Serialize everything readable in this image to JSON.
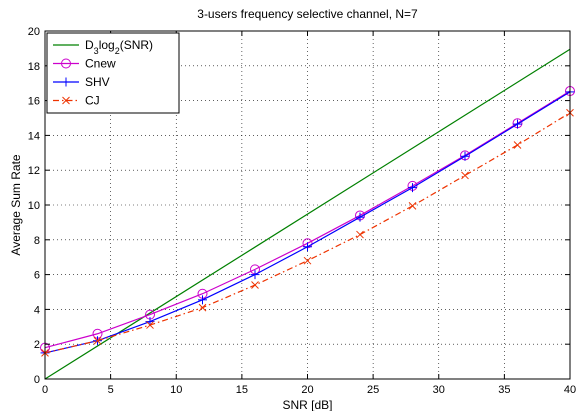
{
  "chart_data": {
    "type": "line",
    "title": "3-users frequency selective channel, N=7",
    "xlabel": "SNR [dB]",
    "ylabel": "Average Sum Rate",
    "xlim": [
      0,
      40
    ],
    "ylim": [
      0,
      20
    ],
    "xticks": [
      0,
      5,
      10,
      15,
      20,
      25,
      30,
      35,
      40
    ],
    "yticks": [
      0,
      2,
      4,
      6,
      8,
      10,
      12,
      14,
      16,
      18,
      20
    ],
    "grid": true,
    "legend_position": "top-left",
    "series": [
      {
        "name": "D3log2(SNR)",
        "legend_parts": {
          "main": "D",
          "sub1": "3",
          "mid": "log",
          "sub2": "2",
          "tail": "(SNR)"
        },
        "color": "#008000",
        "line": "solid",
        "marker": "none",
        "x": [
          0,
          40
        ],
        "y": [
          0,
          18.95
        ]
      },
      {
        "name": "Cnew",
        "color": "#cc00cc",
        "line": "solid",
        "marker": "circle",
        "x": [
          0,
          4,
          8,
          12,
          16,
          20,
          24,
          28,
          32,
          36,
          40
        ],
        "y": [
          1.8,
          2.6,
          3.7,
          4.9,
          6.3,
          7.8,
          9.4,
          11.1,
          12.85,
          14.7,
          16.55
        ]
      },
      {
        "name": "SHV",
        "color": "#0000ff",
        "line": "solid",
        "marker": "plus",
        "x": [
          0,
          4,
          8,
          12,
          16,
          20,
          24,
          28,
          32,
          36,
          40
        ],
        "y": [
          1.5,
          2.2,
          3.3,
          4.55,
          6.0,
          7.6,
          9.3,
          11.0,
          12.8,
          14.65,
          16.5
        ]
      },
      {
        "name": "CJ",
        "color": "#ee3300",
        "line": "dashdot",
        "marker": "x",
        "x": [
          0,
          4,
          8,
          12,
          16,
          20,
          24,
          28,
          32,
          36,
          40
        ],
        "y": [
          1.5,
          2.2,
          3.1,
          4.1,
          5.4,
          6.8,
          8.3,
          9.95,
          11.7,
          13.45,
          15.3
        ]
      }
    ]
  }
}
